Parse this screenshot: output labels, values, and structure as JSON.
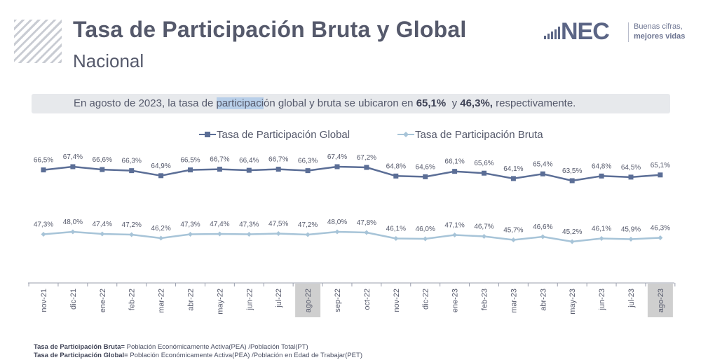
{
  "header": {
    "title": "Tasa de Participación Bruta y Global",
    "subtitle": "Nacional"
  },
  "logo": {
    "brand": "NEC",
    "tagline_line1": "Buenas cifras,",
    "tagline_line2": "mejores vidas"
  },
  "banner": {
    "part1": "En agosto de 2023, la tasa de ",
    "highlight": "participaci",
    "part2": "ón global y bruta se ubicaron en ",
    "value1": "65,1%",
    "connector": "  y ",
    "value2": "46,3%,",
    "part3": " respectivamente."
  },
  "colors": {
    "global": "#5b6e96",
    "bruta": "#a7c4d8",
    "axis": "#9a9fae",
    "label": "#55596b",
    "highlight_box": "#cfcfcf"
  },
  "chart_data": {
    "type": "line",
    "categories": [
      "nov-21",
      "dic-21",
      "ene-22",
      "feb-22",
      "mar-22",
      "abr-22",
      "may-22",
      "jun-22",
      "jul-22",
      "ago-22",
      "sep-22",
      "oct-22",
      "nov-22",
      "dic-22",
      "ene-23",
      "feb-23",
      "mar-23",
      "abr-23",
      "may-23",
      "jun-23",
      "jul-23",
      "ago-23"
    ],
    "highlighted_categories": [
      "ago-22",
      "ago-23"
    ],
    "series": [
      {
        "name": "Tasa de Participación Global",
        "color": "#5b6e96",
        "marker": "square",
        "values": [
          66.5,
          67.4,
          66.6,
          66.3,
          64.9,
          66.5,
          66.7,
          66.4,
          66.7,
          66.3,
          67.4,
          67.2,
          64.8,
          64.6,
          66.1,
          65.6,
          64.1,
          65.4,
          63.5,
          64.8,
          64.5,
          65.1
        ],
        "labels": [
          "66,5%",
          "67,4%",
          "66,6%",
          "66,3%",
          "64,9%",
          "66,5%",
          "66,7%",
          "66,4%",
          "66,7%",
          "66,3%",
          "67,4%",
          "67,2%",
          "64,8%",
          "64,6%",
          "66,1%",
          "65,6%",
          "64,1%",
          "65,4%",
          "63,5%",
          "64,8%",
          "64,5%",
          "65,1%"
        ]
      },
      {
        "name": "Tasa de Participación Bruta",
        "color": "#a7c4d8",
        "marker": "diamond",
        "values": [
          47.3,
          48.0,
          47.4,
          47.2,
          46.2,
          47.3,
          47.4,
          47.3,
          47.5,
          47.2,
          48.0,
          47.8,
          46.1,
          46.0,
          47.1,
          46.7,
          45.7,
          46.6,
          45.2,
          46.1,
          45.9,
          46.3
        ],
        "labels": [
          "47,3%",
          "48,0%",
          "47,4%",
          "47,2%",
          "46,2%",
          "47,3%",
          "47,4%",
          "47,3%",
          "47,5%",
          "47,2%",
          "48,0%",
          "47,8%",
          "46,1%",
          "46,0%",
          "47,1%",
          "46,7%",
          "45,7%",
          "46,6%",
          "45,2%",
          "46,1%",
          "45,9%",
          "46,3%"
        ]
      }
    ],
    "title": "",
    "xlabel": "",
    "ylabel": "",
    "legend": "top-center",
    "grid": false
  },
  "footnotes": [
    {
      "term": "Tasa de Participación Bruta=",
      "definition": " Población Económicamente Activa(PEA) /Población Total(PT)"
    },
    {
      "term": "Tasa de Participación Global=",
      "definition": " Población Económicamente Activa(PEA) /Población en Edad de Trabajar(PET)"
    }
  ]
}
